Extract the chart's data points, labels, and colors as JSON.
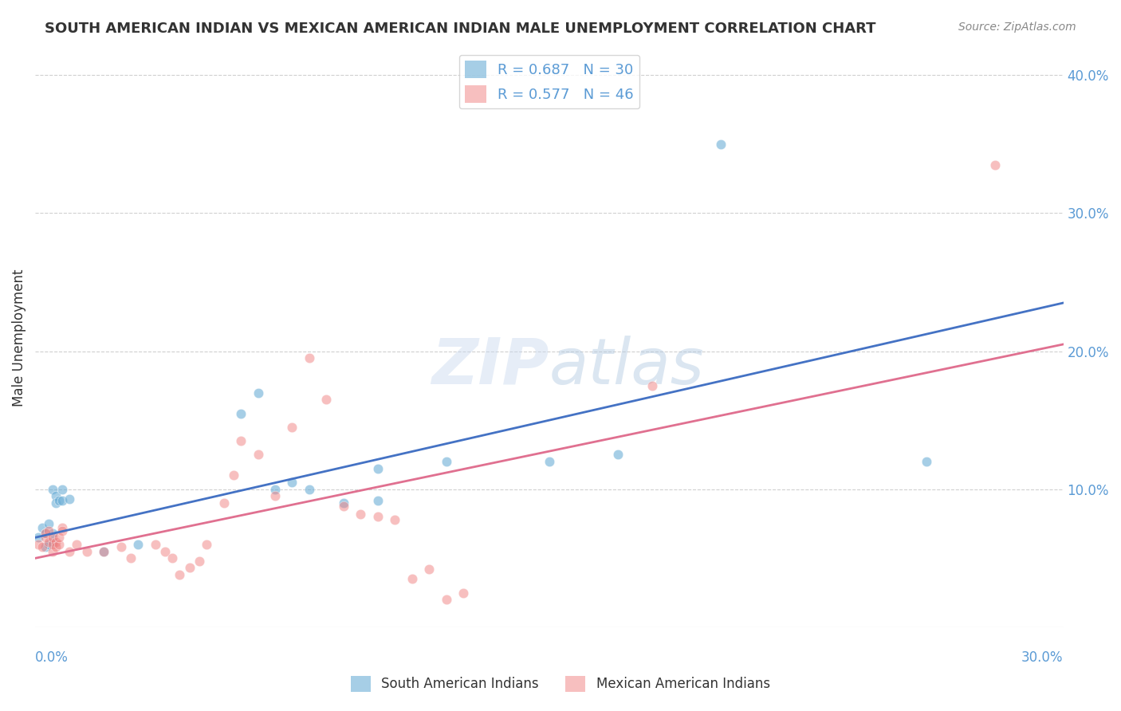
{
  "title": "SOUTH AMERICAN INDIAN VS MEXICAN AMERICAN INDIAN MALE UNEMPLOYMENT CORRELATION CHART",
  "source": "Source: ZipAtlas.com",
  "ylabel": "Male Unemployment",
  "yticks": [
    "",
    "10.0%",
    "20.0%",
    "30.0%",
    "40.0%"
  ],
  "ytick_vals": [
    0.0,
    0.1,
    0.2,
    0.3,
    0.4
  ],
  "xlim": [
    0.0,
    0.3
  ],
  "ylim": [
    0.0,
    0.42
  ],
  "legend_entries": [
    {
      "label": "R = 0.687   N = 30",
      "color": "#aec6e8"
    },
    {
      "label": "R = 0.577   N = 46",
      "color": "#f4b8c8"
    }
  ],
  "blue_scatter": [
    [
      0.001,
      0.065
    ],
    [
      0.002,
      0.072
    ],
    [
      0.003,
      0.068
    ],
    [
      0.003,
      0.058
    ],
    [
      0.004,
      0.06
    ],
    [
      0.004,
      0.075
    ],
    [
      0.005,
      0.062
    ],
    [
      0.005,
      0.068
    ],
    [
      0.005,
      0.1
    ],
    [
      0.006,
      0.095
    ],
    [
      0.006,
      0.09
    ],
    [
      0.007,
      0.092
    ],
    [
      0.008,
      0.092
    ],
    [
      0.008,
      0.1
    ],
    [
      0.01,
      0.093
    ],
    [
      0.02,
      0.055
    ],
    [
      0.03,
      0.06
    ],
    [
      0.06,
      0.155
    ],
    [
      0.065,
      0.17
    ],
    [
      0.07,
      0.1
    ],
    [
      0.075,
      0.105
    ],
    [
      0.08,
      0.1
    ],
    [
      0.09,
      0.09
    ],
    [
      0.1,
      0.115
    ],
    [
      0.12,
      0.12
    ],
    [
      0.15,
      0.12
    ],
    [
      0.17,
      0.125
    ],
    [
      0.2,
      0.35
    ],
    [
      0.26,
      0.12
    ],
    [
      0.1,
      0.092
    ]
  ],
  "pink_scatter": [
    [
      0.001,
      0.06
    ],
    [
      0.002,
      0.058
    ],
    [
      0.003,
      0.065
    ],
    [
      0.003,
      0.068
    ],
    [
      0.004,
      0.062
    ],
    [
      0.004,
      0.07
    ],
    [
      0.005,
      0.055
    ],
    [
      0.005,
      0.06
    ],
    [
      0.005,
      0.065
    ],
    [
      0.006,
      0.062
    ],
    [
      0.006,
      0.058
    ],
    [
      0.007,
      0.06
    ],
    [
      0.007,
      0.065
    ],
    [
      0.008,
      0.072
    ],
    [
      0.008,
      0.07
    ],
    [
      0.01,
      0.055
    ],
    [
      0.012,
      0.06
    ],
    [
      0.015,
      0.055
    ],
    [
      0.02,
      0.055
    ],
    [
      0.025,
      0.058
    ],
    [
      0.028,
      0.05
    ],
    [
      0.035,
      0.06
    ],
    [
      0.038,
      0.055
    ],
    [
      0.04,
      0.05
    ],
    [
      0.042,
      0.038
    ],
    [
      0.045,
      0.043
    ],
    [
      0.048,
      0.048
    ],
    [
      0.05,
      0.06
    ],
    [
      0.055,
      0.09
    ],
    [
      0.058,
      0.11
    ],
    [
      0.06,
      0.135
    ],
    [
      0.065,
      0.125
    ],
    [
      0.07,
      0.095
    ],
    [
      0.075,
      0.145
    ],
    [
      0.08,
      0.195
    ],
    [
      0.085,
      0.165
    ],
    [
      0.09,
      0.088
    ],
    [
      0.095,
      0.082
    ],
    [
      0.1,
      0.08
    ],
    [
      0.105,
      0.078
    ],
    [
      0.11,
      0.035
    ],
    [
      0.115,
      0.042
    ],
    [
      0.12,
      0.02
    ],
    [
      0.125,
      0.025
    ],
    [
      0.18,
      0.175
    ],
    [
      0.28,
      0.335
    ]
  ],
  "blue_line": [
    [
      0.0,
      0.065
    ],
    [
      0.3,
      0.235
    ]
  ],
  "pink_line": [
    [
      0.0,
      0.05
    ],
    [
      0.3,
      0.205
    ]
  ],
  "blue_color": "#6baed6",
  "pink_color": "#f08080",
  "blue_line_color": "#4472c4",
  "pink_line_color": "#e07090",
  "watermark_zip": "ZIP",
  "watermark_atlas": "atlas",
  "background_color": "#ffffff",
  "grid_color": "#d0d0d0",
  "bottom_legend": [
    "South American Indians",
    "Mexican American Indians"
  ]
}
